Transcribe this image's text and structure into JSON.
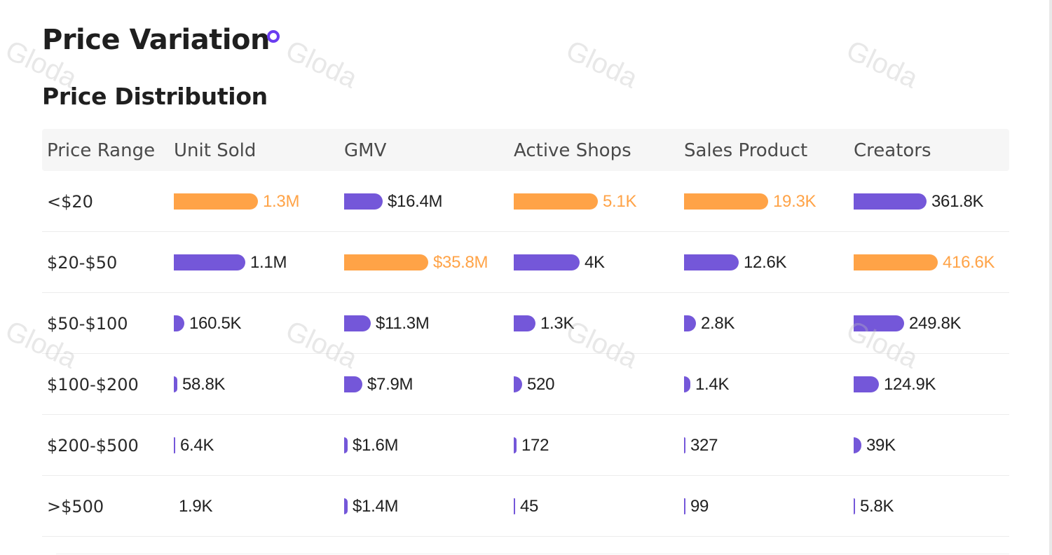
{
  "header": {
    "title": "Price Variation",
    "section_title": "Price Distribution"
  },
  "watermark_text": "Gloda",
  "colors": {
    "accent": "#7457d9",
    "highlight": "#ffa347",
    "dot": "#6a3cf0"
  },
  "table": {
    "columns": [
      "Price Range",
      "Unit Sold",
      "GMV",
      "Active Shops",
      "Sales Product",
      "Creators"
    ],
    "rows": [
      {
        "range": "<$20",
        "cells": [
          {
            "label": "1.3M",
            "value": 1300000,
            "highlight": true
          },
          {
            "label": "$16.4M",
            "value": 16400000,
            "highlight": false
          },
          {
            "label": "5.1K",
            "value": 5100,
            "highlight": true
          },
          {
            "label": "19.3K",
            "value": 19300,
            "highlight": true
          },
          {
            "label": "361.8K",
            "value": 361800,
            "highlight": false
          }
        ]
      },
      {
        "range": "$20-$50",
        "cells": [
          {
            "label": "1.1M",
            "value": 1100000,
            "highlight": false
          },
          {
            "label": "$35.8M",
            "value": 35800000,
            "highlight": true
          },
          {
            "label": "4K",
            "value": 4000,
            "highlight": false
          },
          {
            "label": "12.6K",
            "value": 12600,
            "highlight": false
          },
          {
            "label": "416.6K",
            "value": 416600,
            "highlight": true
          }
        ]
      },
      {
        "range": "$50-$100",
        "cells": [
          {
            "label": "160.5K",
            "value": 160500,
            "highlight": false
          },
          {
            "label": "$11.3M",
            "value": 11300000,
            "highlight": false
          },
          {
            "label": "1.3K",
            "value": 1300,
            "highlight": false
          },
          {
            "label": "2.8K",
            "value": 2800,
            "highlight": false
          },
          {
            "label": "249.8K",
            "value": 249800,
            "highlight": false
          }
        ]
      },
      {
        "range": "$100-$200",
        "cells": [
          {
            "label": "58.8K",
            "value": 58800,
            "highlight": false
          },
          {
            "label": "$7.9M",
            "value": 7900000,
            "highlight": false
          },
          {
            "label": "520",
            "value": 520,
            "highlight": false
          },
          {
            "label": "1.4K",
            "value": 1400,
            "highlight": false
          },
          {
            "label": "124.9K",
            "value": 124900,
            "highlight": false
          }
        ]
      },
      {
        "range": "$200-$500",
        "cells": [
          {
            "label": "6.4K",
            "value": 6400,
            "highlight": false
          },
          {
            "label": "$1.6M",
            "value": 1600000,
            "highlight": false
          },
          {
            "label": "172",
            "value": 172,
            "highlight": false
          },
          {
            "label": "327",
            "value": 327,
            "highlight": false
          },
          {
            "label": "39K",
            "value": 39000,
            "highlight": false
          }
        ]
      },
      {
        "range": ">$500",
        "cells": [
          {
            "label": "1.9K",
            "value": 1900,
            "highlight": false
          },
          {
            "label": "$1.4M",
            "value": 1400000,
            "highlight": false
          },
          {
            "label": "45",
            "value": 45,
            "highlight": false
          },
          {
            "label": "99",
            "value": 99,
            "highlight": false
          },
          {
            "label": "5.8K",
            "value": 5800,
            "highlight": false
          }
        ]
      }
    ]
  }
}
